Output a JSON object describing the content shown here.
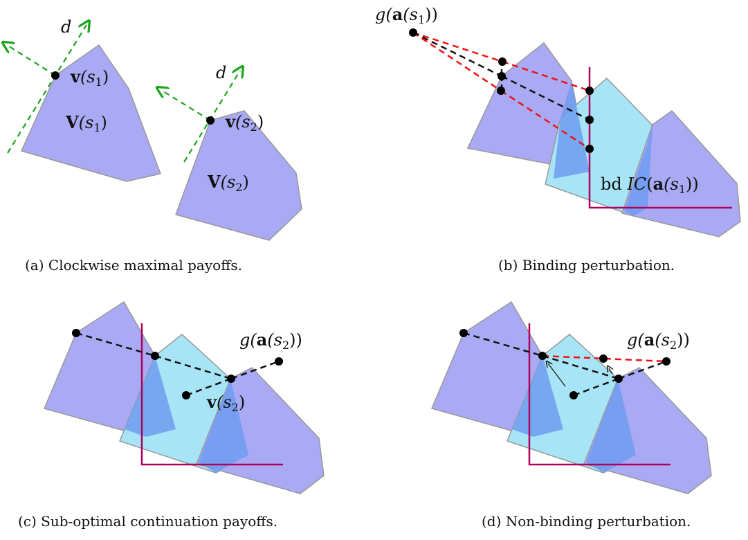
{
  "colors": {
    "poly_blue": "#a9a9f4",
    "poly_cyan": "#a6e4f6",
    "overlap": "#6f9cf0",
    "ic_line": "#b0005a",
    "green_dash": "#1aa51a",
    "red_dash": "#ee1111",
    "black_dash": "#111111"
  },
  "panel_a": {
    "caption": "(a) Clockwise maximal payoffs.",
    "d1": "d",
    "v1_bold": "v",
    "v1_arg": "(s",
    "v1_sub": "1",
    "V1_bold": "V",
    "V1_arg": "(s",
    "V1_sub": "1",
    "d2": "d",
    "v2_bold": "v",
    "v2_arg": "(s",
    "v2_sub": "2",
    "V2_bold": "V",
    "V2_arg": "(s",
    "V2_sub": "2",
    "close": ")"
  },
  "panel_b": {
    "caption": "(b) Binding perturbation.",
    "g_pre": "g(",
    "g_bold": "a",
    "g_arg": "(s",
    "g_sub": "1",
    "g_close": "))",
    "bd_pre": "bd ",
    "bd_ic": "IC",
    "bd_open": "(",
    "bd_bold": "a",
    "bd_arg": "(s",
    "bd_sub": "1",
    "bd_close": "))"
  },
  "panel_c": {
    "caption": "(c) Sub-optimal continuation payoffs.",
    "g_pre": "g(",
    "g_bold": "a",
    "g_arg": "(s",
    "g_sub": "2",
    "g_close": "))",
    "v_bold": "v",
    "v_arg": "(s",
    "v_sub": "2",
    "v_close": ")"
  },
  "panel_d": {
    "caption": "(d) Non-binding perturbation.",
    "g_pre": "g(",
    "g_bold": "a",
    "g_arg": "(s",
    "g_sub": "2",
    "g_close": "))"
  }
}
